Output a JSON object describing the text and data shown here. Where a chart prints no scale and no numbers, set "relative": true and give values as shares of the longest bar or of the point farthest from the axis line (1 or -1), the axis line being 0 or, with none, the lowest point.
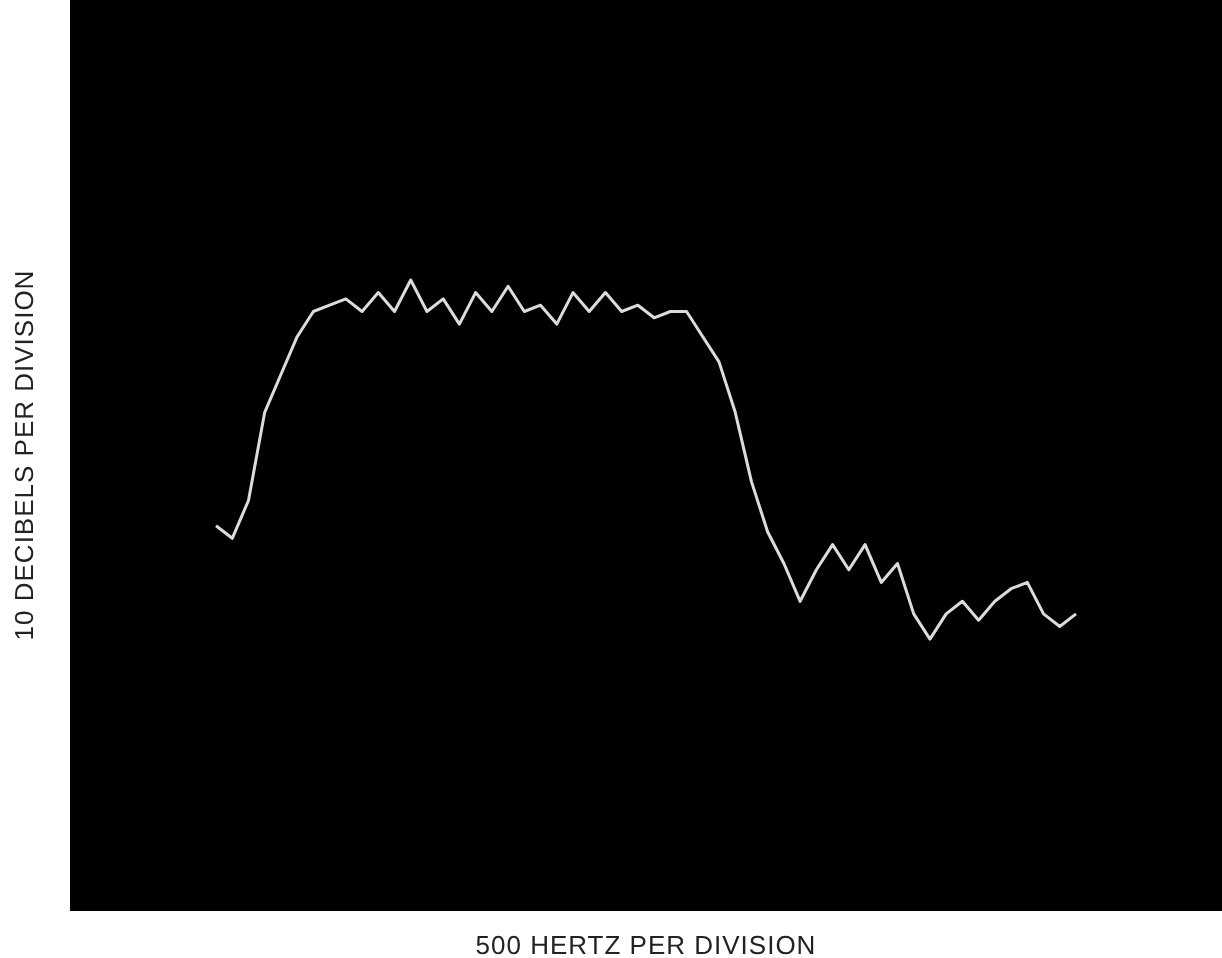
{
  "chart_data": {
    "type": "line",
    "xlabel": "500 HERTZ PER DIVISION",
    "ylabel": "10 DECIBELS PER DIVISION",
    "relative": true,
    "categories": [
      null,
      null,
      null,
      null,
      null,
      null,
      null,
      null,
      null,
      null,
      null,
      null,
      null,
      null,
      null,
      null,
      null,
      null,
      null,
      null,
      null,
      null,
      null,
      null,
      null,
      null,
      null,
      null,
      null,
      null,
      null,
      null,
      null,
      null,
      null,
      null,
      null,
      null,
      null,
      null,
      null,
      null,
      null,
      null,
      null,
      null,
      null,
      null,
      null,
      null,
      null,
      null,
      null,
      null,
      null,
      null,
      null,
      null,
      null,
      null,
      null,
      null,
      null,
      null,
      null,
      null,
      null,
      null,
      null,
      null,
      null,
      null
    ],
    "series": [
      {
        "color": "#dcdcdc",
        "values": [
          null,
          null,
          null,
          null,
          null,
          null,
          null,
          null,
          null,
          0.61,
          0.59,
          0.65,
          0.79,
          0.85,
          0.91,
          0.95,
          0.96,
          0.97,
          0.95,
          0.98,
          0.95,
          1,
          0.95,
          0.97,
          0.93,
          0.98,
          0.95,
          0.99,
          0.95,
          0.96,
          0.93,
          0.98,
          0.95,
          0.98,
          0.95,
          0.96,
          0.94,
          0.95,
          0.95,
          0.91,
          0.87,
          0.79,
          0.68,
          0.6,
          0.55,
          0.49,
          0.54,
          0.58,
          0.54,
          0.58,
          0.52,
          0.55,
          0.47,
          0.43,
          0.47,
          0.49,
          0.46,
          0.49,
          0.51,
          0.52,
          0.47,
          0.45,
          0.47,
          null,
          null,
          null,
          null,
          null,
          null,
          null,
          null,
          null
        ]
      }
    ]
  }
}
